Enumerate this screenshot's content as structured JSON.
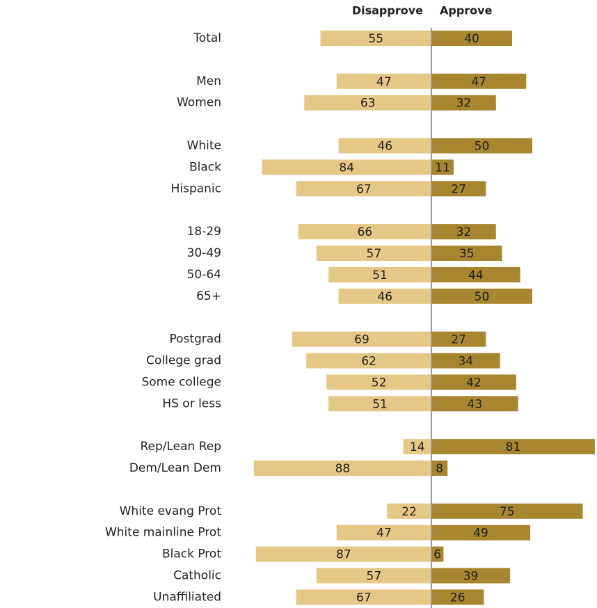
{
  "chart_data": {
    "type": "diverging-bar",
    "categories": [
      "Total",
      "Men",
      "Women",
      "White",
      "Black",
      "Hispanic",
      "18-29",
      "30-49",
      "50-64",
      "65+",
      "Postgrad",
      "College grad",
      "Some college",
      "HS or less",
      "Rep/Lean Rep",
      "Dem/Lean Dem",
      "White evang Prot",
      "White mainline Prot",
      "Black Prot",
      "Catholic",
      "Unaffiliated"
    ],
    "series": [
      {
        "name": "Disapprove",
        "color": "#e6c886",
        "values": [
          55,
          47,
          63,
          46,
          84,
          67,
          66,
          57,
          51,
          46,
          69,
          62,
          52,
          51,
          14,
          88,
          22,
          47,
          87,
          57,
          67
        ]
      },
      {
        "name": "Approve",
        "color": "#a8862f",
        "values": [
          40,
          47,
          32,
          50,
          11,
          27,
          32,
          35,
          44,
          50,
          27,
          34,
          42,
          43,
          81,
          8,
          75,
          49,
          6,
          39,
          26
        ]
      }
    ]
  }
}
